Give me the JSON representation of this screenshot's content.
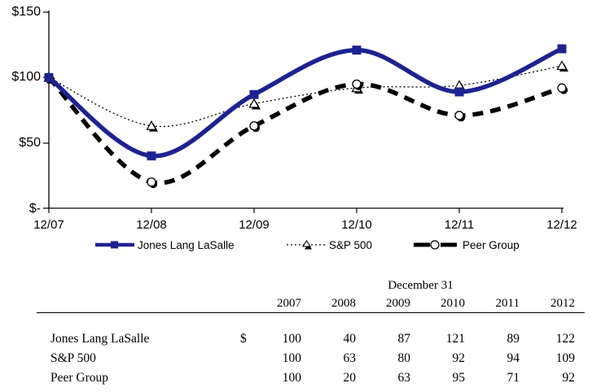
{
  "accent_color": "#1C2390",
  "chart_data": {
    "type": "line",
    "x": [
      "12/07",
      "12/08",
      "12/09",
      "12/10",
      "12/11",
      "12/12"
    ],
    "x_tick_labels": [
      "12/07",
      "12/08",
      "12/09",
      "12/10",
      "12/11",
      "12/12"
    ],
    "y_tick_labels": [
      "$150",
      "$100",
      "$50",
      "$-"
    ],
    "y_ticks": [
      150,
      100,
      50,
      0
    ],
    "ylim": [
      0,
      150
    ],
    "grid": false,
    "legend_position": "bottom",
    "series": [
      {
        "name": "Jones Lang LaSalle",
        "values": [
          100,
          40,
          87,
          121,
          89,
          122
        ],
        "color": "#1C2390",
        "style": "solid-thick",
        "marker": "square"
      },
      {
        "name": "S&P 500",
        "values": [
          100,
          63,
          80,
          92,
          94,
          109
        ],
        "color": "#000000",
        "style": "dotted-thin",
        "marker": "triangle"
      },
      {
        "name": "Peer Group",
        "values": [
          100,
          20,
          63,
          95,
          71,
          92
        ],
        "color": "#000000",
        "style": "dashed-thick",
        "marker": "circle"
      }
    ]
  },
  "table": {
    "date_header": "December 31",
    "columns": [
      "2007",
      "2008",
      "2009",
      "2010",
      "2011",
      "2012"
    ],
    "rows": [
      {
        "label": "Jones Lang LaSalle",
        "currency": "$",
        "values": [
          100,
          40,
          87,
          121,
          89,
          122
        ]
      },
      {
        "label": "S&P 500",
        "currency": "",
        "values": [
          100,
          63,
          80,
          92,
          94,
          109
        ]
      },
      {
        "label": "Peer Group",
        "currency": "",
        "values": [
          100,
          20,
          63,
          95,
          71,
          92
        ]
      }
    ]
  }
}
